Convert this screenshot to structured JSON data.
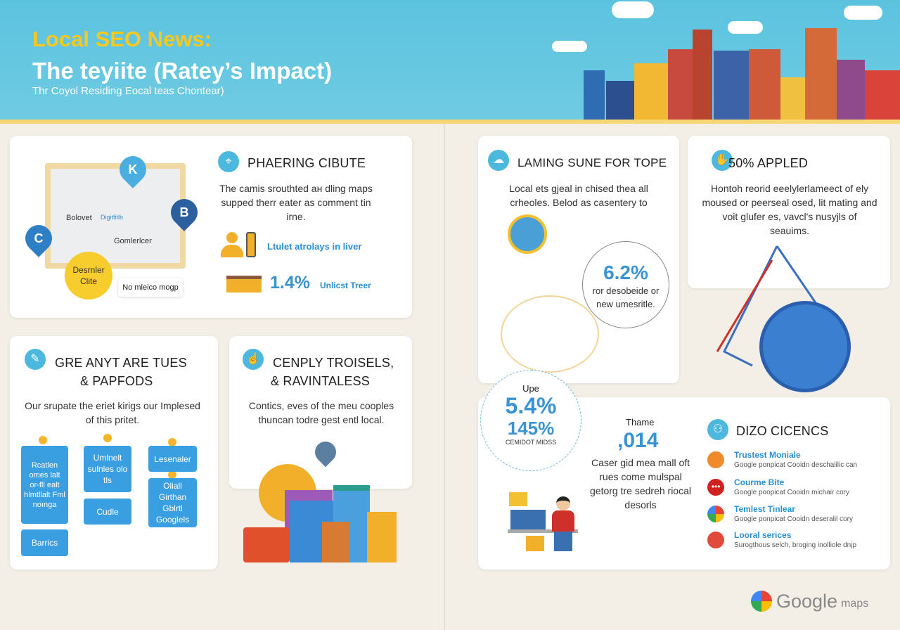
{
  "header": {
    "title": "Local SEO News:",
    "subtitle": "The teyiite (Ratey’s Impact)",
    "tagline": "Thr Coyol Residing Eocal teas Chontear)"
  },
  "card_map": {
    "title": "PHAERING CIBUTE",
    "text": "The camis srouthted ан dling maps supped therr eater as comment tin irne.",
    "map_labels": [
      "Bolovet",
      "Gomlerlcer",
      "Digitfitlb"
    ],
    "pins": [
      "K",
      "B",
      "C"
    ],
    "bubble": "Desrnler Clite",
    "tooltip": "No mleico mogp",
    "stat1_label": "Ltulet atrolays in liver",
    "stat2_value": "1.4%",
    "stat2_label": "Unlicst Treer"
  },
  "card_tools": {
    "title_line1": "GRE ANYT ARE TUES",
    "title_line2": "& PAPFODS",
    "text": "Our srupate the eriet kirigs our Implesed of this pritet.",
    "boxes": [
      "Rcatlen omes lalt or-fll ealt hlmtllalt Fml noınga",
      "Umlnelt sulnles olo tls",
      "Lesenaler",
      "Cudle",
      "Oliall Girthan Gblrtl Googlels",
      "Barrics"
    ]
  },
  "card_city": {
    "title_line1": "CENPLY TROISELS,",
    "title_line2": "& RAVINTALESS",
    "text": "Contics, eves of the meu cooples thuncan todre gest entl local."
  },
  "card_laming": {
    "title": "LAMING SUNE FOR TOPE",
    "text": "Local ets gjeal in chised thea all crheoles. Belod as casentery to",
    "stat_value": "6.2%",
    "stat_label": "ror desobeide or new umesritle."
  },
  "card_applied": {
    "title": "50% APPLED",
    "text": "Hontoh reorid eeelylerlameect of ely moused or peerseal osed, lit mating and voit glufer es, vavcl's nusyjls of seauims."
  },
  "stat_circle": {
    "label_top": "Upe",
    "value1": "5.4%",
    "value2": "145%",
    "label_bottom": "CEMIDOT MIDSS"
  },
  "card_dizo": {
    "theme_label": "Thame",
    "theme_value": ",014",
    "theme_text": "Caser gid mea mall oft rues come mulspal getorg tre sedreh riocal desorls",
    "title": "DIZO CICENCS",
    "items": [
      {
        "title": "Trustest Moniale",
        "desc": "Google ponpicat Cooidn deschalilic can",
        "color": "#f08a2a"
      },
      {
        "title": "Courme Bite",
        "desc": "Google poopicat Cooidn michair cory",
        "color": "#d0201f"
      },
      {
        "title": "Temlest Tinlear",
        "desc": "Google ponpicat Cooidn deseralil cory",
        "color": "#34a853"
      },
      {
        "title": "Looral serices",
        "desc": "Surogthous selch, broging inolliole dnjp",
        "color": "#e04a3a"
      }
    ]
  },
  "footer": {
    "brand": "Google",
    "brand_suffix": "maps"
  },
  "colors": {
    "sky": "#5cc3df",
    "accent_yellow": "#f7c81e",
    "accent_blue": "#3a93d2",
    "background": "#f3efe6"
  }
}
